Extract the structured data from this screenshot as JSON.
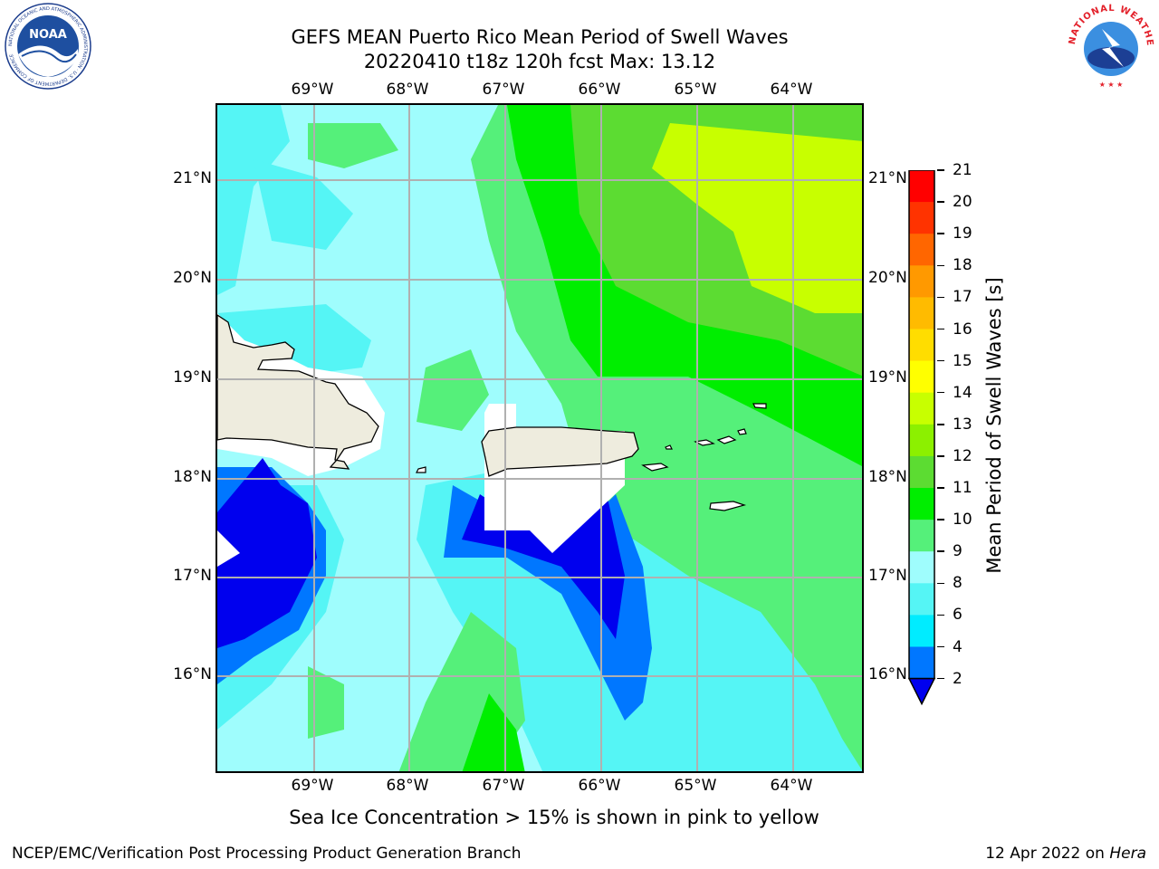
{
  "header": {
    "title_line1": "GEFS MEAN Puerto Rico Mean Period of Swell Waves",
    "title_line2": "20220410 t18z 120h fcst   Max: 13.12"
  },
  "map": {
    "lon_labels": [
      "69°W",
      "68°W",
      "67°W",
      "66°W",
      "65°W",
      "64°W"
    ],
    "lat_labels": [
      "21°N",
      "20°N",
      "19°N",
      "18°N",
      "17°N",
      "16°N"
    ],
    "land_color": "#eeecde",
    "region": "Puerto Rico"
  },
  "colorbar": {
    "title": "Mean Period of Swell Waves [s]",
    "ticks": [
      "21",
      "20",
      "19",
      "18",
      "17",
      "16",
      "15",
      "14",
      "13",
      "12",
      "11",
      "10",
      "9",
      "8",
      "6",
      "4",
      "2"
    ],
    "colors": [
      "#ff0000",
      "#ff3300",
      "#ff6600",
      "#ff9900",
      "#ffbb00",
      "#ffdd00",
      "#ffff00",
      "#e6ff00",
      "#c8ff00",
      "#8cf000",
      "#5cdc32",
      "#00ee00",
      "#55f07a",
      "#9ffdfd",
      "#55f5f5",
      "#00ecff",
      "#0077ff",
      "#0000ee"
    ],
    "under_color": "#0000ee"
  },
  "caption": "Sea Ice Concentration > 15% is shown in pink to yellow",
  "footer": {
    "left": "NCEP/EMC/Verification Post Processing Product Generation Branch",
    "right_date": "12 Apr 2022 on ",
    "right_host": "Hera"
  },
  "logos": {
    "noaa_text": "NOAA",
    "noaa_ring": "NATIONAL OCEANIC AND ATMOSPHERIC ADMINISTRATION · U.S. DEPARTMENT OF COMMERCE",
    "nws_ring": "NATIONAL WEATHER SERVICE"
  }
}
